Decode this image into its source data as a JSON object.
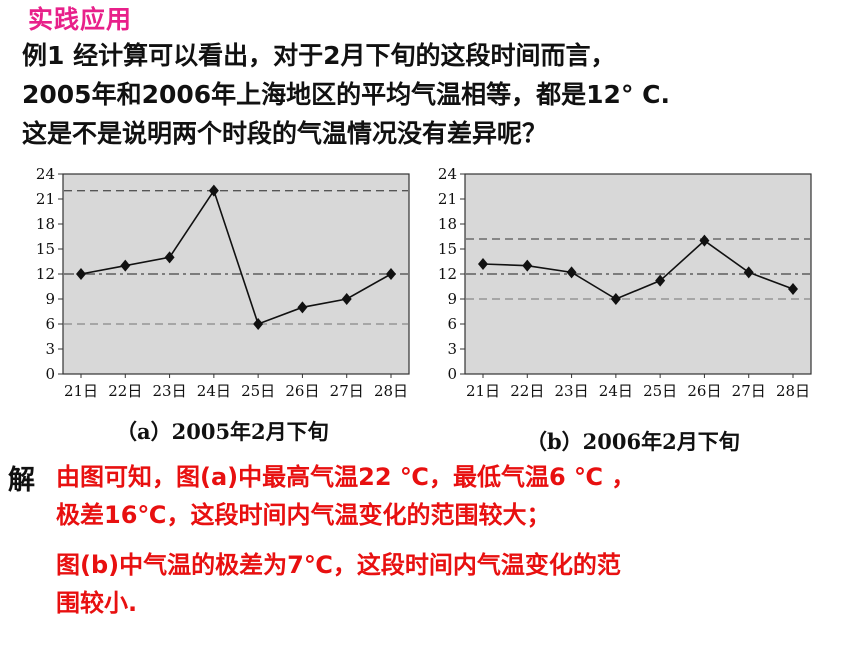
{
  "section_title": "实践应用",
  "example": {
    "label": "例1",
    "line1": "经计算可以看出，对于2月下旬的这段时间而言，",
    "line2": "2005年和2006年上海地区的平均气温相等，都是12° C.",
    "line3": "这是不是说明两个时段的气温情况没有差异呢？"
  },
  "chart_data": [
    {
      "type": "line",
      "caption": "（a）2005年2月下旬",
      "categories": [
        "21日",
        "22日",
        "23日",
        "24日",
        "25日",
        "26日",
        "27日",
        "28日"
      ],
      "values": [
        12,
        13,
        14,
        22,
        6,
        8,
        9,
        12
      ],
      "yticks": [
        "0",
        "3",
        "6",
        "9",
        "12",
        "15",
        "18",
        "21",
        "24"
      ],
      "ylim": [
        0,
        24
      ],
      "reference_lines": [
        22,
        12,
        6
      ],
      "background": "#d8d8d8"
    },
    {
      "type": "line",
      "caption": "（b）2006年2月下旬",
      "categories": [
        "21日",
        "22日",
        "23日",
        "24日",
        "25日",
        "26日",
        "27日",
        "28日"
      ],
      "values": [
        13.2,
        13,
        12.2,
        9,
        11.2,
        16,
        12.2,
        10.2
      ],
      "yticks": [
        "0",
        "3",
        "6",
        "9",
        "12",
        "15",
        "18",
        "21",
        "24"
      ],
      "ylim": [
        0,
        24
      ],
      "reference_lines": [
        16.2,
        12,
        9
      ],
      "background": "#d8d8d8"
    }
  ],
  "solution": {
    "label": "解",
    "line1": "由图可知，图(a)中最高气温22 ℃，最低气温6 ℃ ，",
    "line2": "极差16℃，这段时间内气温变化的范围较大；",
    "line3": "图(b)中气温的极差为7℃，这段时间内气温变化的范",
    "line4": "围较小."
  }
}
